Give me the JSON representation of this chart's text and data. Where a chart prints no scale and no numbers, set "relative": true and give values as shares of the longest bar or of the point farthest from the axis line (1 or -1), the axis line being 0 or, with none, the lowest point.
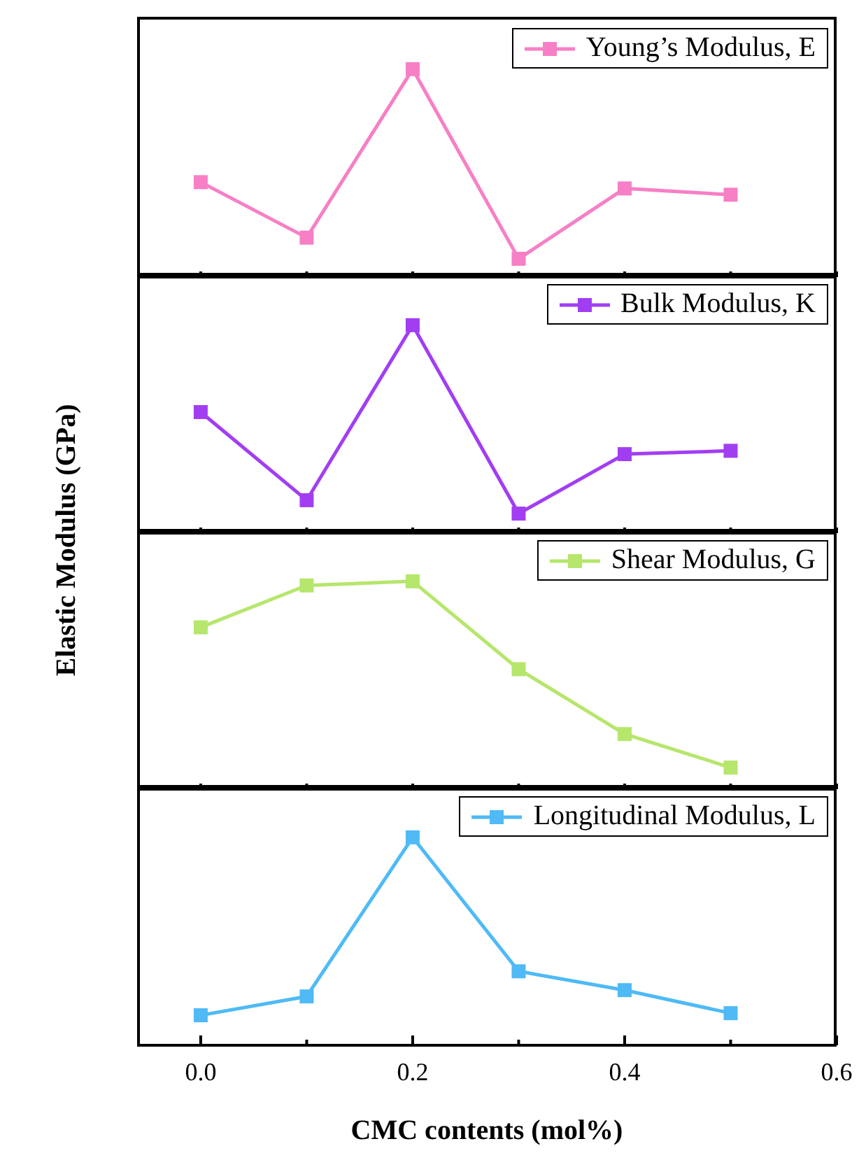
{
  "chart_data": [
    {
      "type": "line",
      "relative": true,
      "ylabel": "Elastic Modulus (GPa)",
      "x": [
        0.0,
        0.1,
        0.2,
        0.3,
        0.4,
        0.5
      ],
      "xlim": [
        -0.06,
        0.6
      ],
      "xticks": [
        {
          "value": 0.0,
          "label": null
        },
        {
          "value": 0.1,
          "label": null
        },
        {
          "value": 0.2,
          "label": null
        },
        {
          "value": 0.3,
          "label": null
        },
        {
          "value": 0.4,
          "label": null
        },
        {
          "value": 0.5,
          "label": null
        },
        {
          "value": 0.6,
          "label": null
        }
      ],
      "tick_labels": false,
      "marker": "square",
      "legend": "top right",
      "grid": false,
      "series": [
        {
          "name": "Young’s Modulus, E",
          "color": "#f77fc6",
          "values": [
            0.46,
            0.195,
            1,
            0.094,
            0.43,
            0.4
          ]
        }
      ]
    },
    {
      "type": "line",
      "relative": true,
      "x": [
        0.0,
        0.1,
        0.2,
        0.3,
        0.4,
        0.5
      ],
      "xlim": [
        -0.06,
        0.6
      ],
      "xticks": [
        {
          "value": 0.0,
          "label": null
        },
        {
          "value": 0.1,
          "label": null
        },
        {
          "value": 0.2,
          "label": null
        },
        {
          "value": 0.3,
          "label": null
        },
        {
          "value": 0.4,
          "label": null
        },
        {
          "value": 0.5,
          "label": null
        },
        {
          "value": 0.6,
          "label": null
        }
      ],
      "tick_labels": false,
      "marker": "square",
      "legend": "top right",
      "grid": false,
      "series": [
        {
          "name": "Bulk Modulus, K",
          "color": "#a23ef2",
          "values": [
            0.585,
            0.164,
            1,
            0.1,
            0.384,
            0.4
          ]
        }
      ]
    },
    {
      "type": "line",
      "relative": true,
      "x": [
        0.0,
        0.1,
        0.2,
        0.3,
        0.4,
        0.5
      ],
      "xlim": [
        -0.06,
        0.6
      ],
      "xticks": [
        {
          "value": 0.0,
          "label": null
        },
        {
          "value": 0.1,
          "label": null
        },
        {
          "value": 0.2,
          "label": null
        },
        {
          "value": 0.3,
          "label": null
        },
        {
          "value": 0.4,
          "label": null
        },
        {
          "value": 0.5,
          "label": null
        },
        {
          "value": 0.6,
          "label": null
        }
      ],
      "tick_labels": false,
      "marker": "square",
      "legend": "top right",
      "grid": false,
      "series": [
        {
          "name": "Shear Modulus, G",
          "color": "#b6e66c",
          "values": [
            0.78,
            0.98,
            1,
            0.58,
            0.27,
            0.11
          ]
        }
      ]
    },
    {
      "type": "line",
      "relative": true,
      "xlabel": "CMC contents (mol%)",
      "x": [
        0.0,
        0.1,
        0.2,
        0.3,
        0.4,
        0.5
      ],
      "xlim": [
        -0.06,
        0.6
      ],
      "xticks": [
        {
          "value": 0.0,
          "label": "0.0"
        },
        {
          "value": 0.1,
          "label": null
        },
        0.2,
        {
          "value": 0.3,
          "label": null
        },
        0.4,
        {
          "value": 0.5,
          "label": null
        },
        0.6
      ],
      "tick_labels": "x",
      "marker": "square",
      "legend": "top right",
      "grid": false,
      "series": [
        {
          "name": "Longitudinal Modulus, L",
          "color": "#4fbaf5",
          "values": [
            0.15,
            0.24,
            1,
            0.36,
            0.27,
            0.16
          ]
        }
      ]
    }
  ]
}
